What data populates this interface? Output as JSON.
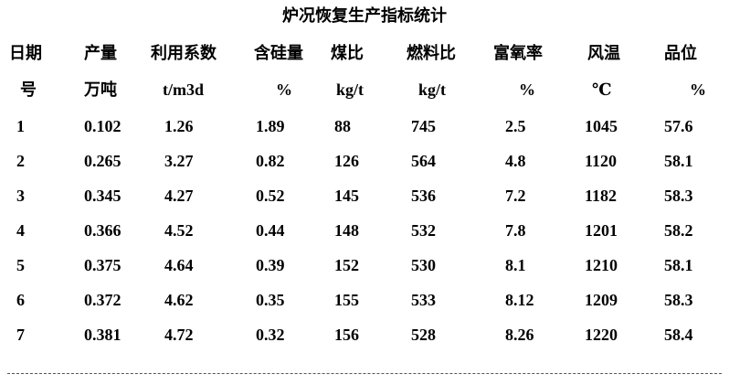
{
  "title": "炉况恢复生产指标统计",
  "table": {
    "header": [
      [
        "日期",
        "产量",
        "利用系数",
        "含硅量",
        "煤比",
        "燃料比",
        "富氧率",
        "风温",
        "品位"
      ],
      [
        "号",
        "万吨",
        "t/m3d",
        "%",
        "kg/t",
        "kg/t",
        "%",
        "℃",
        "%"
      ]
    ],
    "rows": [
      [
        "1",
        "0.102",
        "1.26",
        "1.89",
        "88",
        "745",
        "2.5",
        "1045",
        "57.6"
      ],
      [
        "2",
        "0.265",
        "3.27",
        "0.82",
        "126",
        "564",
        "4.8",
        "1120",
        "58.1"
      ],
      [
        "3",
        "0.345",
        "4.27",
        "0.52",
        "145",
        "536",
        "7.2",
        "1182",
        "58.3"
      ],
      [
        "4",
        "0.366",
        "4.52",
        "0.44",
        "148",
        "532",
        "7.8",
        "1201",
        "58.2"
      ],
      [
        "5",
        "0.375",
        "4.64",
        "0.39",
        "152",
        "530",
        "8.1",
        "1210",
        "58.1"
      ],
      [
        "6",
        "0.372",
        "4.62",
        "0.35",
        "155",
        "533",
        "8.12",
        "1209",
        "58.3"
      ],
      [
        "7",
        "0.381",
        "4.72",
        "0.32",
        "156",
        "528",
        "8.26",
        "1220",
        "58.4"
      ]
    ]
  }
}
